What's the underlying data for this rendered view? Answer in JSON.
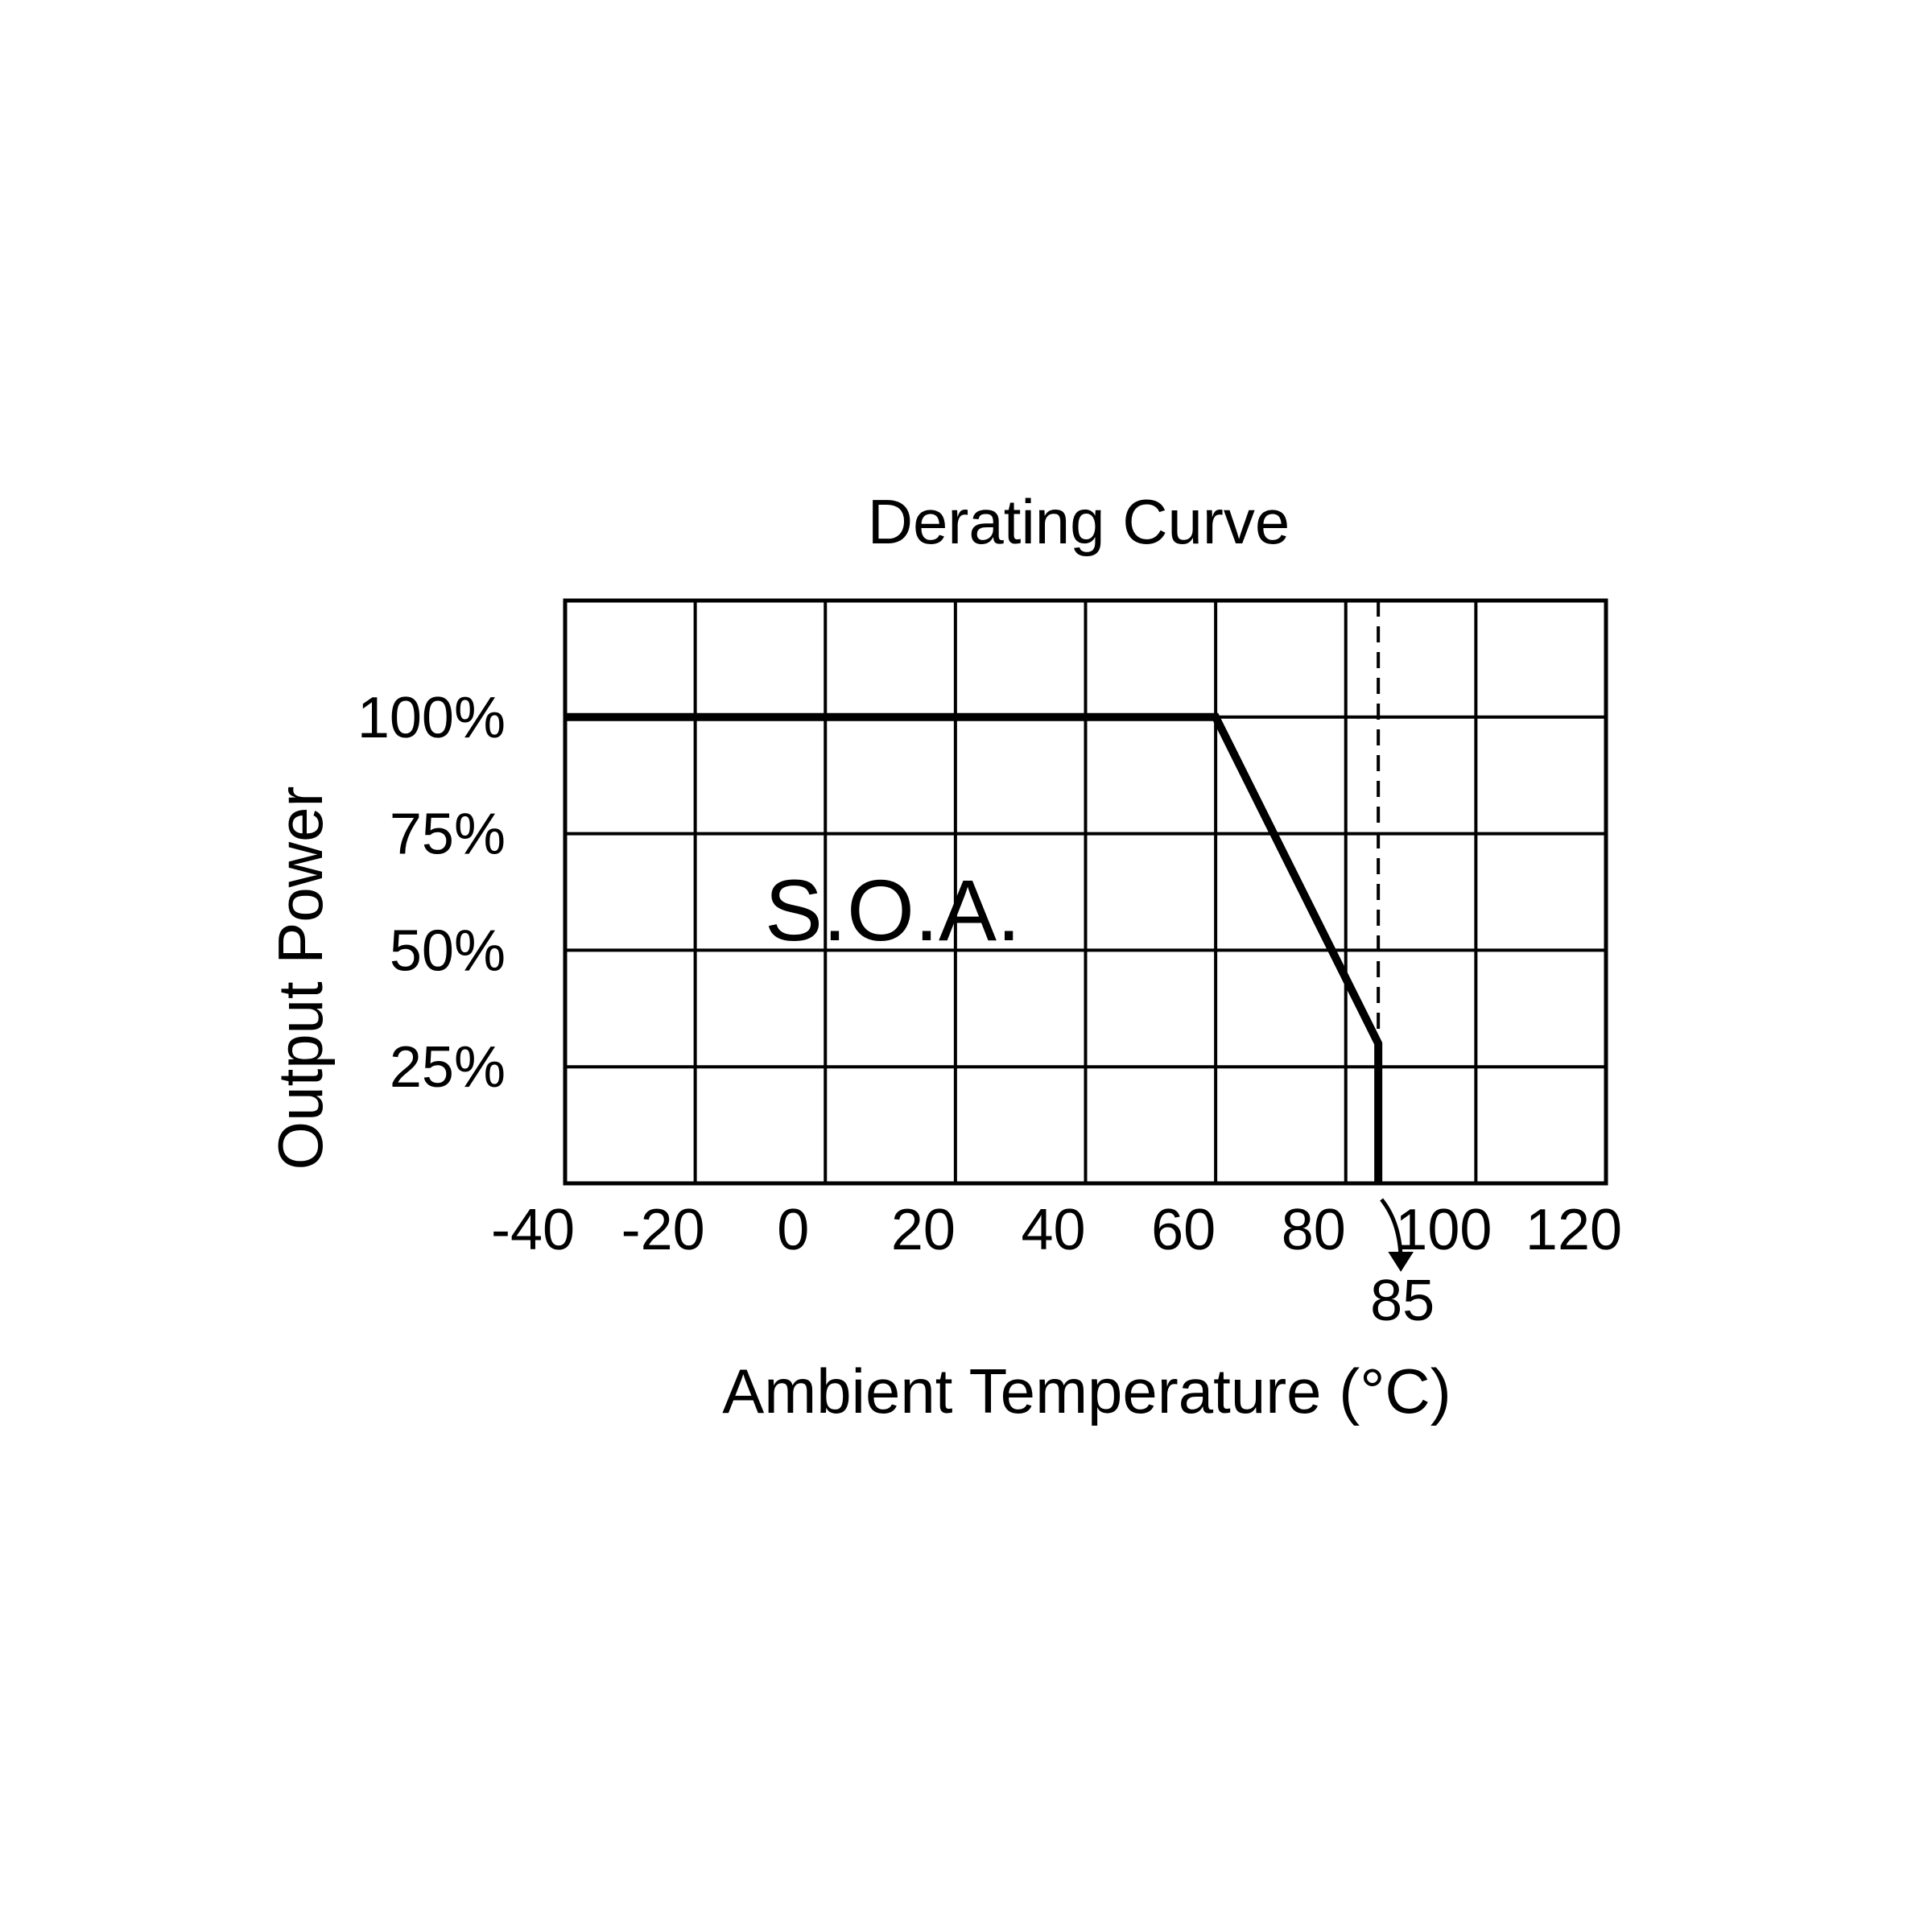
{
  "chart_data": {
    "type": "line",
    "title": "Derating Curve",
    "xlabel": "Ambient Temperature (°C)",
    "ylabel": "Output Power",
    "xlim": [
      -40,
      120
    ],
    "ylim": [
      0,
      125
    ],
    "x_ticks": [
      -40,
      -20,
      0,
      20,
      40,
      60,
      80,
      100,
      120
    ],
    "x_tick_labels": [
      "-40",
      "-20",
      "0",
      "20",
      "40",
      "60",
      "80",
      "100",
      "120"
    ],
    "y_ticks": [
      25,
      50,
      75,
      100
    ],
    "y_tick_labels": [
      "25%",
      "50%",
      "75%",
      "100%"
    ],
    "grid": true,
    "series": [
      {
        "x": [
          -40,
          60,
          85,
          85
        ],
        "y": [
          100,
          100,
          30,
          0
        ]
      }
    ],
    "reference_line": {
      "x": 85,
      "style": "dashed"
    },
    "marker_label": {
      "x": 85,
      "text": "85"
    },
    "region_label": "S.O.A.",
    "colors": {
      "line": "#000000",
      "grid": "#000000",
      "background": "#ffffff"
    }
  }
}
